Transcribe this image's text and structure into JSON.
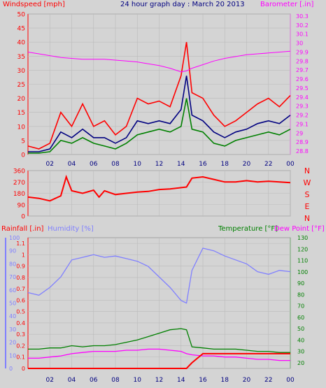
{
  "chart_data": [
    {
      "type": "line",
      "title": "24 hour graph day : March 20 2013",
      "ylabel_left": "Windspeed [mph]",
      "ylabel_right": "Barometer [.in]",
      "x_ticks": [
        "02",
        "04",
        "06",
        "08",
        "10",
        "12",
        "14",
        "16",
        "18",
        "20",
        "22",
        "00"
      ],
      "ylim_left": [
        0,
        50
      ],
      "y_ticks_left": [
        "0",
        "5",
        "10",
        "15",
        "20",
        "25",
        "30",
        "35",
        "40",
        "45",
        "50"
      ],
      "ylim_right": [
        28.8,
        30.3
      ],
      "y_ticks_right": [
        "28.8",
        "28.9",
        "29",
        "29.1",
        "29.2",
        "29.3",
        "29.4",
        "29.5",
        "29.6",
        "29.7",
        "29.8",
        "29.9",
        "30",
        "30.1",
        "30.2",
        "30.3"
      ],
      "x": [
        0,
        1,
        2,
        3,
        4,
        5,
        6,
        7,
        8,
        9,
        10,
        11,
        12,
        13,
        14,
        14.5,
        15,
        16,
        17,
        18,
        19,
        20,
        21,
        22,
        23,
        24
      ],
      "series": [
        {
          "axis": "left",
          "color": "#ff0000",
          "values": [
            3,
            2,
            4,
            15,
            10,
            18,
            10,
            12,
            7,
            10,
            20,
            18,
            19,
            17,
            28,
            40,
            22,
            20,
            14,
            10,
            12,
            15,
            18,
            20,
            17,
            21
          ]
        },
        {
          "axis": "left",
          "color": "#000080",
          "values": [
            1,
            1,
            2,
            8,
            6,
            9,
            6,
            6,
            4,
            6,
            12,
            11,
            12,
            11,
            16,
            28,
            14,
            12,
            8,
            6,
            8,
            9,
            11,
            12,
            11,
            14
          ]
        },
        {
          "axis": "left",
          "color": "#008000",
          "values": [
            0.5,
            0.5,
            1,
            5,
            4,
            6,
            4,
            3,
            2,
            4,
            7,
            8,
            9,
            8,
            10,
            20,
            9,
            8,
            4,
            3,
            5,
            6,
            7,
            8,
            7,
            9
          ]
        },
        {
          "axis": "right",
          "color": "#ff00ff",
          "values": [
            29.9,
            29.88,
            29.86,
            29.84,
            29.83,
            29.82,
            29.82,
            29.82,
            29.81,
            29.8,
            29.79,
            29.77,
            29.75,
            29.72,
            29.68,
            29.69,
            29.72,
            29.76,
            29.8,
            29.83,
            29.85,
            29.87,
            29.88,
            29.89,
            29.9,
            29.91
          ]
        }
      ]
    },
    {
      "type": "line",
      "x_ticks": [
        "02",
        "04",
        "06",
        "08",
        "10",
        "12",
        "14",
        "16",
        "18",
        "20",
        "22",
        "00"
      ],
      "ylim_left": [
        0,
        360
      ],
      "y_ticks_left": [
        "0",
        "90",
        "180",
        "270",
        "360"
      ],
      "compass_labels": [
        "N",
        "W",
        "S",
        "E",
        "N"
      ],
      "x": [
        0,
        1,
        2,
        3,
        3.5,
        4,
        5,
        6,
        6.5,
        7,
        8,
        9,
        10,
        11,
        12,
        13,
        14,
        14.5,
        15,
        16,
        17,
        18,
        19,
        20,
        21,
        22,
        23,
        24
      ],
      "series": [
        {
          "color": "#ff0000",
          "values": [
            150,
            140,
            120,
            160,
            310,
            200,
            180,
            205,
            150,
            200,
            170,
            180,
            190,
            195,
            210,
            215,
            225,
            230,
            300,
            310,
            290,
            270,
            270,
            280,
            270,
            275,
            270,
            265
          ]
        }
      ]
    },
    {
      "type": "line",
      "ylabel_left": "Rainfall [.in]",
      "ylabel_left2": "Humidity [%]",
      "ylabel_right": "Temperature [°F]",
      "ylabel_right2": "Dew Point [°F]",
      "x_ticks": [
        "02",
        "04",
        "06",
        "08",
        "10",
        "12",
        "14",
        "16",
        "18",
        "20",
        "22",
        "00"
      ],
      "y_ticks_rain": [
        "0",
        "0.1",
        "0.2",
        "0.3",
        "0.4",
        "0.5",
        "0.6",
        "0.7",
        "0.8",
        "0.9",
        "1",
        "1.1"
      ],
      "y_ticks_humidity": [
        "0",
        "10",
        "20",
        "30",
        "40",
        "50",
        "60",
        "70",
        "80",
        "90",
        "100"
      ],
      "y_ticks_temp": [
        "20",
        "30",
        "40",
        "50",
        "60",
        "70",
        "80",
        "90",
        "100",
        "110",
        "120",
        "130"
      ],
      "ylim_rain": [
        0,
        1.15
      ],
      "ylim_humidity": [
        0,
        100
      ],
      "ylim_temp": [
        15,
        130
      ],
      "x": [
        0,
        1,
        2,
        3,
        4,
        5,
        6,
        7,
        8,
        9,
        10,
        11,
        12,
        13,
        14,
        14.5,
        15,
        16,
        17,
        18,
        19,
        20,
        21,
        22,
        23,
        24
      ],
      "series": [
        {
          "name": "Humidity",
          "color": "#8080ff",
          "scale": "humidity",
          "values": [
            58,
            56,
            62,
            70,
            83,
            85,
            87,
            85,
            86,
            84,
            82,
            78,
            70,
            62,
            52,
            50,
            75,
            92,
            90,
            86,
            83,
            80,
            74,
            72,
            75,
            74
          ]
        },
        {
          "name": "Temperature",
          "color": "#008000",
          "scale": "temp",
          "values": [
            32,
            32,
            33,
            33,
            35,
            34,
            35,
            35,
            36,
            38,
            40,
            43,
            46,
            49,
            50,
            49,
            34,
            33,
            32,
            32,
            32,
            31,
            30,
            30,
            29,
            29
          ]
        },
        {
          "name": "Dew Point",
          "color": "#ff00ff",
          "scale": "temp",
          "values": [
            24,
            24,
            25,
            26,
            28,
            29,
            30,
            30,
            30,
            31,
            31,
            32,
            32,
            31,
            30,
            28,
            27,
            26,
            26,
            25,
            25,
            24,
            23,
            23,
            22,
            22
          ]
        },
        {
          "name": "Rainfall",
          "color": "#ff0000",
          "scale": "rain",
          "values": [
            0,
            0,
            0,
            0,
            0,
            0,
            0,
            0,
            0,
            0,
            0,
            0,
            0,
            0,
            0,
            0,
            0.05,
            0.13,
            0.13,
            0.13,
            0.13,
            0.13,
            0.13,
            0.13,
            0.13,
            0.13
          ]
        }
      ]
    }
  ]
}
